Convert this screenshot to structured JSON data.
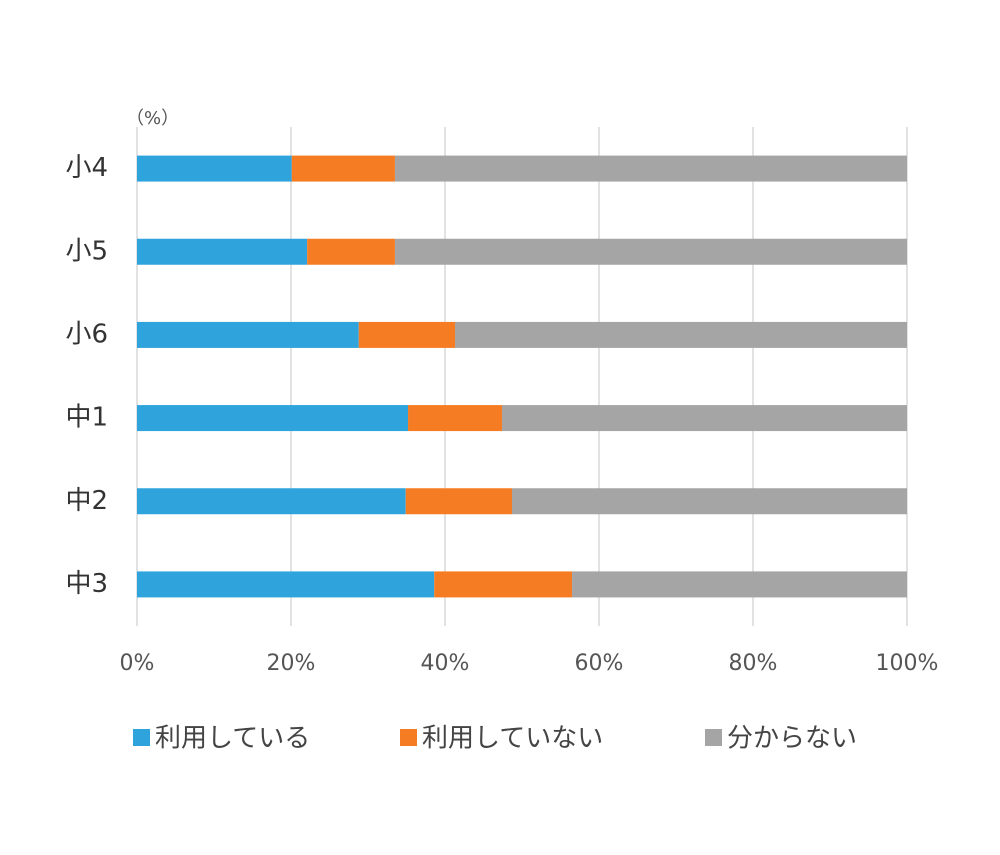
{
  "chart_data": {
    "type": "stacked-bar-horizontal",
    "unit_label": "（%）",
    "categories": [
      "小4",
      "小5",
      "小6",
      "中1",
      "中2",
      "中3"
    ],
    "series": [
      {
        "name": "利用している",
        "color": "#2ea3dc",
        "values": [
          20.1,
          22.1,
          28.8,
          35.2,
          34.9,
          38.6
        ]
      },
      {
        "name": "利用していない",
        "color": "#f57c22",
        "values": [
          13.4,
          11.4,
          12.5,
          12.2,
          13.8,
          17.9
        ]
      },
      {
        "name": "分からない",
        "color": "#a5a5a5",
        "values": [
          66.5,
          66.5,
          58.7,
          52.6,
          51.3,
          43.5
        ]
      }
    ],
    "xlim": [
      0,
      100
    ],
    "xticks": [
      {
        "value": 0,
        "label": "0%"
      },
      {
        "value": 20,
        "label": "20%"
      },
      {
        "value": 40,
        "label": "40%"
      },
      {
        "value": 60,
        "label": "60%"
      },
      {
        "value": 80,
        "label": "80%"
      },
      {
        "value": 100,
        "label": "100%"
      }
    ],
    "grid": true
  }
}
